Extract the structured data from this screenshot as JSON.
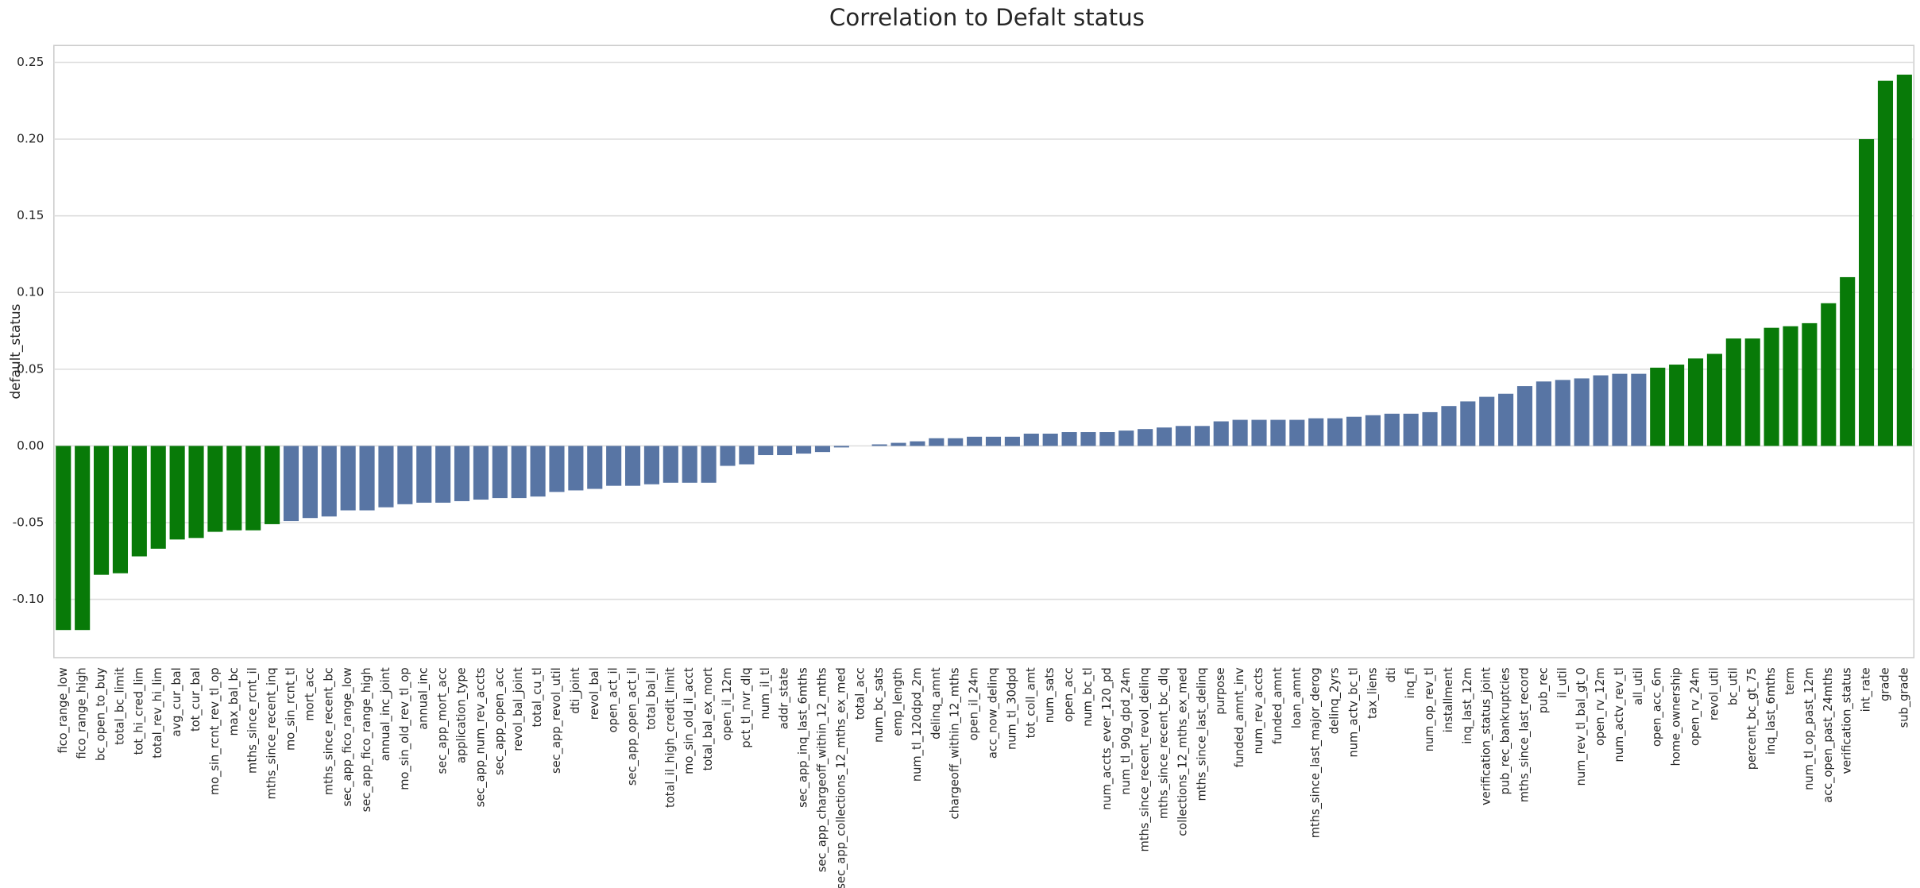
{
  "chart_data": {
    "type": "bar",
    "title": "Correlation to Defalt status",
    "ylabel": "default_status",
    "categories": [
      "fico_range_low",
      "fico_range_high",
      "bc_open_to_buy",
      "total_bc_limit",
      "tot_hi_cred_lim",
      "total_rev_hi_lim",
      "avg_cur_bal",
      "tot_cur_bal",
      "mo_sin_rcnt_rev_tl_op",
      "max_bal_bc",
      "mths_since_rcnt_il",
      "mths_since_recent_inq",
      "mo_sin_rcnt_tl",
      "mort_acc",
      "mths_since_recent_bc",
      "sec_app_fico_range_low",
      "sec_app_fico_range_high",
      "annual_inc_joint",
      "mo_sin_old_rev_tl_op",
      "annual_inc",
      "sec_app_mort_acc",
      "application_type",
      "sec_app_num_rev_accts",
      "sec_app_open_acc",
      "revol_bal_joint",
      "total_cu_tl",
      "sec_app_revol_util",
      "dti_joint",
      "revol_bal",
      "open_act_il",
      "sec_app_open_act_il",
      "total_bal_il",
      "total_il_high_credit_limit",
      "mo_sin_old_il_acct",
      "total_bal_ex_mort",
      "open_il_12m",
      "pct_tl_nvr_dlq",
      "num_il_tl",
      "addr_state",
      "sec_app_inq_last_6mths",
      "sec_app_chargeoff_within_12_mths",
      "sec_app_collections_12_mths_ex_med",
      "total_acc",
      "num_bc_sats",
      "emp_length",
      "num_tl_120dpd_2m",
      "delinq_amnt",
      "chargeoff_within_12_mths",
      "open_il_24m",
      "acc_now_delinq",
      "num_tl_30dpd",
      "tot_coll_amt",
      "num_sats",
      "open_acc",
      "num_bc_tl",
      "num_accts_ever_120_pd",
      "num_tl_90g_dpd_24m",
      "mths_since_recent_revol_delinq",
      "mths_since_recent_bc_dlq",
      "collections_12_mths_ex_med",
      "mths_since_last_delinq",
      "purpose",
      "funded_amnt_inv",
      "num_rev_accts",
      "funded_amnt",
      "loan_amnt",
      "mths_since_last_major_derog",
      "delinq_2yrs",
      "num_actv_bc_tl",
      "tax_liens",
      "dti",
      "inq_fi",
      "num_op_rev_tl",
      "installment",
      "inq_last_12m",
      "verification_status_joint",
      "pub_rec_bankruptcies",
      "mths_since_last_record",
      "pub_rec",
      "il_util",
      "num_rev_tl_bal_gt_0",
      "open_rv_12m",
      "num_actv_rev_tl",
      "all_util",
      "open_acc_6m",
      "home_ownership",
      "open_rv_24m",
      "revol_util",
      "bc_util",
      "percent_bc_gt_75",
      "inq_last_6mths",
      "term",
      "num_tl_op_past_12m",
      "acc_open_past_24mths",
      "verification_status",
      "int_rate",
      "grade",
      "sub_grade"
    ],
    "values": [
      -0.12,
      -0.12,
      -0.084,
      -0.083,
      -0.072,
      -0.067,
      -0.061,
      -0.06,
      -0.056,
      -0.055,
      -0.055,
      -0.051,
      -0.049,
      -0.047,
      -0.046,
      -0.042,
      -0.042,
      -0.04,
      -0.038,
      -0.037,
      -0.037,
      -0.036,
      -0.035,
      -0.034,
      -0.034,
      -0.033,
      -0.03,
      -0.029,
      -0.028,
      -0.026,
      -0.026,
      -0.025,
      -0.024,
      -0.024,
      -0.024,
      -0.013,
      -0.012,
      -0.006,
      -0.006,
      -0.005,
      -0.004,
      -0.001,
      0.0,
      0.001,
      0.002,
      0.003,
      0.005,
      0.005,
      0.006,
      0.006,
      0.006,
      0.008,
      0.008,
      0.009,
      0.009,
      0.009,
      0.01,
      0.011,
      0.012,
      0.013,
      0.013,
      0.016,
      0.017,
      0.017,
      0.017,
      0.017,
      0.018,
      0.018,
      0.019,
      0.02,
      0.021,
      0.021,
      0.022,
      0.026,
      0.029,
      0.032,
      0.034,
      0.039,
      0.042,
      0.043,
      0.044,
      0.046,
      0.047,
      0.047,
      0.051,
      0.053,
      0.057,
      0.06,
      0.07,
      0.07,
      0.077,
      0.078,
      0.08,
      0.093,
      0.11,
      0.2,
      0.238,
      0.242
    ],
    "colors": [
      "#087a08",
      "#087a08",
      "#087a08",
      "#087a08",
      "#087a08",
      "#087a08",
      "#087a08",
      "#087a08",
      "#087a08",
      "#087a08",
      "#087a08",
      "#087a08",
      "#5875a4",
      "#5875a4",
      "#5875a4",
      "#5875a4",
      "#5875a4",
      "#5875a4",
      "#5875a4",
      "#5875a4",
      "#5875a4",
      "#5875a4",
      "#5875a4",
      "#5875a4",
      "#5875a4",
      "#5875a4",
      "#5875a4",
      "#5875a4",
      "#5875a4",
      "#5875a4",
      "#5875a4",
      "#5875a4",
      "#5875a4",
      "#5875a4",
      "#5875a4",
      "#5875a4",
      "#5875a4",
      "#5875a4",
      "#5875a4",
      "#5875a4",
      "#5875a4",
      "#5875a4",
      "#5875a4",
      "#5875a4",
      "#5875a4",
      "#5875a4",
      "#5875a4",
      "#5875a4",
      "#5875a4",
      "#5875a4",
      "#5875a4",
      "#5875a4",
      "#5875a4",
      "#5875a4",
      "#5875a4",
      "#5875a4",
      "#5875a4",
      "#5875a4",
      "#5875a4",
      "#5875a4",
      "#5875a4",
      "#5875a4",
      "#5875a4",
      "#5875a4",
      "#5875a4",
      "#5875a4",
      "#5875a4",
      "#5875a4",
      "#5875a4",
      "#5875a4",
      "#5875a4",
      "#5875a4",
      "#5875a4",
      "#5875a4",
      "#5875a4",
      "#5875a4",
      "#5875a4",
      "#5875a4",
      "#5875a4",
      "#5875a4",
      "#5875a4",
      "#5875a4",
      "#5875a4",
      "#5875a4",
      "#087a08",
      "#087a08",
      "#087a08",
      "#087a08",
      "#087a08",
      "#087a08",
      "#087a08",
      "#087a08",
      "#087a08",
      "#087a08",
      "#087a08",
      "#087a08",
      "#087a08",
      "#087a08"
    ],
    "ylim": [
      -0.138,
      0.261
    ],
    "yticks": [
      {
        "value": -0.1,
        "label": "-0.10"
      },
      -0.05,
      {
        "value": 0,
        "label": "0.00"
      },
      {
        "value": 0.05,
        "label": "0.05"
      },
      {
        "value": 0.1,
        "label": "0.10"
      },
      0.15,
      {
        "value": 0.2,
        "label": "0.20"
      },
      0.25
    ],
    "grid": true
  }
}
